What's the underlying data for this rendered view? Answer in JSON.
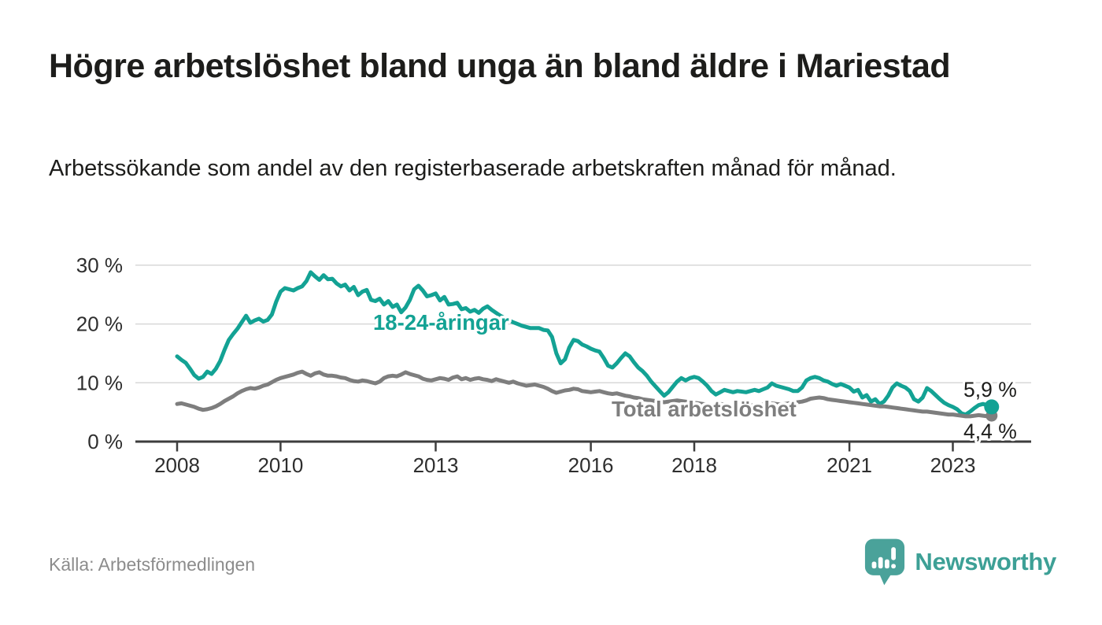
{
  "header": {
    "title": "Högre arbetslöshet bland unga än bland äldre i Mariestad",
    "subtitle": "Arbetssökande som andel av den registerbaserade arbetskraften månad för månad."
  },
  "footer": {
    "source": "Källa: Arbetsförmedlingen",
    "brand": "Newsworthy"
  },
  "colors": {
    "youth_line": "#13a294",
    "total_line": "#7e7e7e",
    "grid": "#d8d8d8",
    "axis": "#3d3d3d",
    "tick_label": "#2e2e2e",
    "end_label": "#1d1d1b",
    "source_text": "#8c8c8c",
    "brand_teal": "#3da096",
    "logo_fill": "#4aa29a"
  },
  "chart_data": {
    "type": "line",
    "x_start_year": 2008,
    "x_interval": "monthly",
    "x_tick_years": [
      2008,
      2010,
      2013,
      2016,
      2018,
      2021,
      2023
    ],
    "y_ticks": [
      0,
      10,
      20,
      30
    ],
    "y_tick_suffix": " %",
    "ylim": [
      0,
      32
    ],
    "grid": "horizontal",
    "legend_position": "inline-labels",
    "series": [
      {
        "name": "18-24-åringar",
        "color": "#13a294",
        "end_value": 5.9,
        "end_label": "5,9 %",
        "values": [
          14.5,
          13.9,
          13.4,
          12.4,
          11.3,
          10.7,
          11.0,
          11.9,
          11.5,
          12.4,
          13.7,
          15.6,
          17.3,
          18.3,
          19.2,
          20.3,
          21.4,
          20.2,
          20.6,
          20.9,
          20.4,
          20.7,
          21.6,
          23.8,
          25.5,
          26.1,
          25.9,
          25.7,
          26.1,
          26.4,
          27.3,
          28.8,
          28.1,
          27.5,
          28.3,
          27.6,
          27.7,
          26.9,
          26.4,
          26.7,
          25.7,
          26.3,
          24.9,
          25.5,
          25.8,
          24.1,
          23.9,
          24.3,
          23.3,
          23.9,
          22.9,
          23.3,
          22.0,
          22.8,
          24.1,
          25.9,
          26.5,
          25.7,
          24.7,
          24.9,
          25.2,
          24.0,
          24.6,
          23.3,
          23.4,
          23.6,
          22.5,
          22.7,
          22.1,
          22.4,
          21.9,
          22.6,
          23.0,
          22.4,
          21.9,
          21.4,
          21.0,
          20.6,
          20.3,
          20.0,
          19.7,
          19.5,
          19.3,
          19.3,
          19.3,
          19.0,
          18.9,
          17.8,
          15.0,
          13.3,
          14.0,
          16.0,
          17.3,
          17.1,
          16.5,
          16.2,
          15.8,
          15.5,
          15.3,
          14.2,
          12.9,
          12.6,
          13.3,
          14.2,
          15.0,
          14.5,
          13.5,
          12.6,
          12.0,
          11.2,
          10.2,
          9.4,
          8.6,
          7.8,
          8.4,
          9.3,
          10.2,
          10.8,
          10.4,
          10.8,
          11.0,
          10.8,
          10.2,
          9.5,
          8.6,
          8.0,
          8.4,
          8.8,
          8.6,
          8.4,
          8.6,
          8.5,
          8.4,
          8.6,
          8.8,
          8.6,
          8.9,
          9.2,
          9.9,
          9.5,
          9.3,
          9.1,
          8.9,
          8.6,
          8.6,
          9.2,
          10.4,
          10.8,
          11.0,
          10.8,
          10.4,
          10.2,
          9.8,
          9.5,
          9.8,
          9.5,
          9.2,
          8.5,
          8.8,
          7.5,
          7.9,
          6.8,
          7.2,
          6.4,
          6.8,
          7.8,
          9.2,
          9.9,
          9.5,
          9.2,
          8.6,
          7.2,
          6.8,
          7.5,
          9.1,
          8.6,
          7.9,
          7.2,
          6.6,
          6.2,
          5.9,
          5.5,
          4.8,
          4.6,
          5.1,
          5.7,
          6.2,
          6.4,
          6.2,
          5.9
        ]
      },
      {
        "name": "Total arbetslöshet",
        "color": "#7e7e7e",
        "end_value": 4.4,
        "end_label": "4,4 %",
        "values": [
          6.4,
          6.5,
          6.3,
          6.1,
          5.9,
          5.6,
          5.4,
          5.5,
          5.7,
          6.0,
          6.4,
          6.9,
          7.3,
          7.7,
          8.2,
          8.6,
          8.9,
          9.1,
          9.0,
          9.2,
          9.5,
          9.7,
          10.1,
          10.5,
          10.8,
          11.0,
          11.2,
          11.4,
          11.7,
          11.9,
          11.5,
          11.2,
          11.6,
          11.8,
          11.4,
          11.2,
          11.2,
          11.1,
          10.9,
          10.8,
          10.5,
          10.3,
          10.2,
          10.4,
          10.3,
          10.1,
          9.9,
          10.2,
          10.8,
          11.1,
          11.2,
          11.1,
          11.4,
          11.8,
          11.5,
          11.3,
          11.1,
          10.7,
          10.5,
          10.4,
          10.6,
          10.8,
          10.7,
          10.5,
          10.9,
          11.1,
          10.6,
          10.8,
          10.5,
          10.7,
          10.8,
          10.6,
          10.5,
          10.3,
          10.6,
          10.4,
          10.2,
          10.0,
          10.2,
          9.9,
          9.7,
          9.5,
          9.6,
          9.7,
          9.5,
          9.3,
          9.0,
          8.6,
          8.3,
          8.5,
          8.7,
          8.8,
          9.0,
          8.9,
          8.6,
          8.5,
          8.4,
          8.5,
          8.6,
          8.4,
          8.2,
          8.1,
          8.2,
          8.0,
          7.8,
          7.7,
          7.5,
          7.4,
          7.2,
          7.1,
          7.0,
          6.9,
          6.8,
          6.7,
          6.8,
          6.9,
          7.0,
          6.9,
          6.8,
          6.7,
          6.6,
          6.5,
          6.4,
          6.3,
          6.2,
          6.3,
          6.4,
          6.3,
          6.2,
          6.1,
          6.2,
          6.3,
          6.3,
          6.2,
          6.1,
          6.2,
          6.3,
          6.4,
          6.5,
          6.4,
          6.3,
          6.4,
          6.5,
          6.6,
          6.7,
          6.8,
          7.0,
          7.3,
          7.4,
          7.5,
          7.4,
          7.2,
          7.1,
          7.0,
          6.9,
          6.8,
          6.7,
          6.6,
          6.5,
          6.4,
          6.3,
          6.2,
          6.1,
          6.0,
          6.0,
          5.9,
          5.8,
          5.7,
          5.6,
          5.5,
          5.4,
          5.3,
          5.2,
          5.1,
          5.1,
          5.0,
          4.9,
          4.8,
          4.7,
          4.6,
          4.6,
          4.5,
          4.4,
          4.3,
          4.3,
          4.4,
          4.5,
          4.4,
          4.3,
          4.4
        ]
      }
    ]
  }
}
